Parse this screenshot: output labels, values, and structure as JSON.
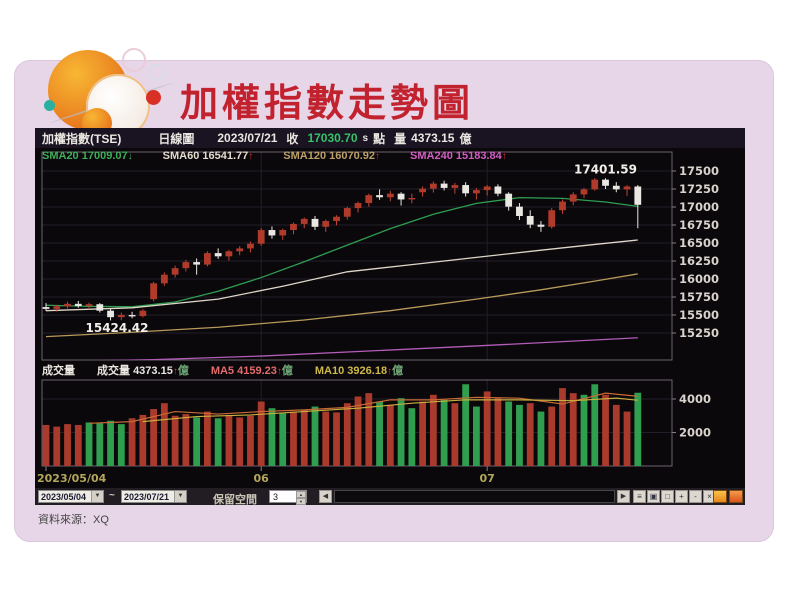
{
  "slide": {
    "title": "加權指數走勢圖",
    "source": "資料來源：XQ"
  },
  "chart": {
    "header": {
      "symbol": "加權指數(TSE)",
      "period": "日線圖",
      "date": "2023/07/21",
      "close_label": "收",
      "close_value": "17030.70",
      "session_flag": "s",
      "point_label": "點",
      "volume_label": "量",
      "volume_value": "4373.15",
      "unit": "億"
    },
    "sma_labels": [
      {
        "name": "SMA20",
        "value": "17009.07",
        "arrow": "↓",
        "color": "#3fae5a",
        "arrow_color": "#3fae5a"
      },
      {
        "name": "SMA60",
        "value": "16541.77",
        "arrow": "↑",
        "color": "#e4dccf",
        "arrow_color": "#e03030"
      },
      {
        "name": "SMA120",
        "value": "16070.92",
        "arrow": "↑",
        "color": "#bda068",
        "arrow_color": "#e03030"
      },
      {
        "name": "SMA240",
        "value": "15183.84",
        "arrow": "↑",
        "color": "#d35fc3",
        "arrow_color": "#e03030"
      }
    ],
    "volume_pane_label": "成交量",
    "volume_labels": [
      {
        "name": "成交量",
        "value": "4373.15",
        "arrow": "↑",
        "unit": "億",
        "color": "#eae6e0",
        "arrow_color": "#e03030"
      },
      {
        "name": "MA5",
        "value": "4159.23",
        "arrow": "↑",
        "unit": "億",
        "color": "#e36c6c",
        "arrow_color": "#e03030"
      },
      {
        "name": "MA10",
        "value": "3926.18",
        "arrow": "↑",
        "unit": "億",
        "color": "#cdb84a",
        "arrow_color": "#e03030"
      }
    ],
    "toolbar": {
      "date_from": "2023/05/04",
      "tilde": "~",
      "date_to": "2023/07/21",
      "dropdown_arrow": "▼",
      "reserve_label": "保留空間",
      "reserve_value": "3",
      "spinner_up": "▲",
      "spinner_down": "▼",
      "scroll_left": "◀",
      "scroll_right": "▶",
      "tool_glyphs": [
        "≡",
        "▣",
        "□",
        "+",
        "-",
        "×"
      ]
    }
  },
  "chart_data": {
    "type": "candlestick+volume",
    "title": "加權指數(TSE) 日線圖",
    "date_range": [
      "2023/05/04",
      "2023/07/21"
    ],
    "price_axis_ticks": [
      17500,
      17250,
      17000,
      16750,
      16500,
      16250,
      16000,
      15750,
      15500,
      15250
    ],
    "volume_axis_ticks": [
      4000,
      2000
    ],
    "x_ticks": [
      {
        "index": 0,
        "label": "2023/05/04",
        "align": "start"
      },
      {
        "index": 20,
        "label": "06",
        "align": "middle"
      },
      {
        "index": 41,
        "label": "07",
        "align": "middle"
      }
    ],
    "annotations": [
      {
        "index": 6.6,
        "price": 15264,
        "text": "15424.42",
        "anchor": "middle"
      },
      {
        "index": 52,
        "price": 17462,
        "text": "17401.59",
        "anchor": "middle"
      }
    ],
    "colors": {
      "up": "#b03b2b",
      "up_wick": "#c44436",
      "down": "#e9e7e2",
      "vol_r": "#a93a2c",
      "vol_g": "#2f9e4f",
      "grid": "#241e2b",
      "border": "#6e6270",
      "axis_text": "#d9d3cd",
      "x_text": "#b3a75a"
    },
    "candles": [
      [
        15610,
        15665,
        15555,
        15585,
        2450,
        "r"
      ],
      [
        15585,
        15640,
        15545,
        15620,
        2350,
        "r"
      ],
      [
        15620,
        15685,
        15590,
        15655,
        2500,
        "r"
      ],
      [
        15655,
        15695,
        15600,
        15625,
        2450,
        "r"
      ],
      [
        15625,
        15670,
        15580,
        15650,
        2600,
        "g"
      ],
      [
        15650,
        15665,
        15535,
        15560,
        2550,
        "g"
      ],
      [
        15560,
        15585,
        15424.42,
        15470,
        2700,
        "g"
      ],
      [
        15470,
        15535,
        15428,
        15500,
        2500,
        "g"
      ],
      [
        15500,
        15545,
        15455,
        15485,
        2850,
        "r"
      ],
      [
        15485,
        15580,
        15465,
        15560,
        3050,
        "r"
      ],
      [
        15720,
        15960,
        15690,
        15940,
        3400,
        "r"
      ],
      [
        15940,
        16090,
        15905,
        16060,
        3750,
        "r"
      ],
      [
        16060,
        16185,
        16020,
        16150,
        3000,
        "r"
      ],
      [
        16150,
        16265,
        16105,
        16235,
        3100,
        "r"
      ],
      [
        16235,
        16285,
        16060,
        16200,
        2900,
        "g"
      ],
      [
        16200,
        16385,
        16175,
        16360,
        3250,
        "r"
      ],
      [
        16360,
        16425,
        16280,
        16315,
        2850,
        "g"
      ],
      [
        16315,
        16405,
        16255,
        16385,
        3050,
        "r"
      ],
      [
        16385,
        16455,
        16330,
        16425,
        2900,
        "r"
      ],
      [
        16425,
        16520,
        16370,
        16490,
        3000,
        "r"
      ],
      [
        16490,
        16705,
        16460,
        16680,
        3850,
        "r"
      ],
      [
        16680,
        16730,
        16560,
        16605,
        3450,
        "g"
      ],
      [
        16605,
        16700,
        16545,
        16680,
        3150,
        "g"
      ],
      [
        16680,
        16785,
        16620,
        16765,
        3250,
        "r"
      ],
      [
        16765,
        16855,
        16705,
        16835,
        3350,
        "r"
      ],
      [
        16835,
        16875,
        16680,
        16725,
        3550,
        "g"
      ],
      [
        16725,
        16825,
        16655,
        16805,
        3250,
        "r"
      ],
      [
        16805,
        16885,
        16745,
        16865,
        3200,
        "r"
      ],
      [
        16865,
        17005,
        16825,
        16985,
        3750,
        "r"
      ],
      [
        16985,
        17075,
        16925,
        17055,
        4150,
        "r"
      ],
      [
        17055,
        17185,
        17005,
        17165,
        4350,
        "r"
      ],
      [
        17165,
        17245,
        17100,
        17135,
        3850,
        "g"
      ],
      [
        17135,
        17225,
        17080,
        17185,
        3650,
        "r"
      ],
      [
        17185,
        17205,
        17020,
        17105,
        4050,
        "g"
      ],
      [
        17105,
        17185,
        17050,
        17125,
        3450,
        "g"
      ],
      [
        17205,
        17285,
        17145,
        17255,
        3850,
        "r"
      ],
      [
        17255,
        17355,
        17200,
        17325,
        4250,
        "r"
      ],
      [
        17325,
        17365,
        17230,
        17265,
        3950,
        "g"
      ],
      [
        17265,
        17335,
        17185,
        17305,
        3750,
        "r"
      ],
      [
        17305,
        17345,
        17145,
        17190,
        4880,
        "g"
      ],
      [
        17190,
        17265,
        17105,
        17235,
        3550,
        "g"
      ],
      [
        17235,
        17305,
        17160,
        17285,
        4450,
        "r"
      ],
      [
        17285,
        17315,
        17150,
        17185,
        4050,
        "r"
      ],
      [
        17185,
        17205,
        16950,
        17005,
        3850,
        "g"
      ],
      [
        17005,
        17055,
        16820,
        16875,
        3650,
        "g"
      ],
      [
        16875,
        16955,
        16705,
        16755,
        3750,
        "r"
      ],
      [
        16755,
        16805,
        16655,
        16725,
        3250,
        "g"
      ],
      [
        16725,
        16985,
        16700,
        16955,
        3550,
        "r"
      ],
      [
        16955,
        17105,
        16905,
        17075,
        4650,
        "r"
      ],
      [
        17075,
        17205,
        17025,
        17175,
        4350,
        "r"
      ],
      [
        17175,
        17265,
        17125,
        17245,
        4250,
        "g"
      ],
      [
        17245,
        17401.59,
        17225,
        17380,
        4880,
        "g"
      ],
      [
        17380,
        17400,
        17250,
        17295,
        4250,
        "r"
      ],
      [
        17295,
        17345,
        17205,
        17245,
        3650,
        "r"
      ],
      [
        17245,
        17305,
        17155,
        17285,
        3250,
        "r"
      ],
      [
        17285,
        17305,
        16705,
        17030.7,
        4373.15,
        "g"
      ]
    ],
    "price_mas": [
      {
        "name": "SMA20",
        "color": "#2f9e52",
        "points": [
          [
            0,
            15635
          ],
          [
            4,
            15620
          ],
          [
            8,
            15615
          ],
          [
            12,
            15680
          ],
          [
            16,
            15830
          ],
          [
            20,
            16020
          ],
          [
            24,
            16240
          ],
          [
            28,
            16470
          ],
          [
            32,
            16700
          ],
          [
            36,
            16900
          ],
          [
            40,
            17050
          ],
          [
            44,
            17130
          ],
          [
            48,
            17120
          ],
          [
            52,
            17070
          ],
          [
            55,
            17009.07
          ]
        ]
      },
      {
        "name": "SMA60",
        "color": "#ded6c8",
        "points": [
          [
            0,
            15560
          ],
          [
            8,
            15600
          ],
          [
            16,
            15720
          ],
          [
            22,
            15900
          ],
          [
            28,
            16100
          ],
          [
            34,
            16200
          ],
          [
            40,
            16300
          ],
          [
            46,
            16400
          ],
          [
            51,
            16480
          ],
          [
            55,
            16541.77
          ]
        ]
      },
      {
        "name": "SMA120",
        "color": "#b89a5a",
        "points": [
          [
            0,
            15200
          ],
          [
            8,
            15260
          ],
          [
            16,
            15330
          ],
          [
            24,
            15430
          ],
          [
            32,
            15560
          ],
          [
            40,
            15720
          ],
          [
            46,
            15850
          ],
          [
            51,
            15970
          ],
          [
            55,
            16070.92
          ]
        ]
      },
      {
        "name": "SMA240",
        "color": "#b35cb8",
        "points": [
          [
            0,
            14850
          ],
          [
            10,
            14880
          ],
          [
            20,
            14930
          ],
          [
            30,
            15000
          ],
          [
            40,
            15070
          ],
          [
            48,
            15130
          ],
          [
            55,
            15183.84
          ]
        ]
      }
    ],
    "volume_mas": [
      {
        "name": "MA5",
        "color": "#c96a35",
        "points": [
          [
            4,
            2550
          ],
          [
            8,
            2650
          ],
          [
            12,
            3250
          ],
          [
            16,
            3100
          ],
          [
            20,
            3250
          ],
          [
            24,
            3350
          ],
          [
            28,
            3500
          ],
          [
            32,
            3950
          ],
          [
            36,
            3950
          ],
          [
            40,
            4100
          ],
          [
            44,
            4050
          ],
          [
            48,
            3700
          ],
          [
            52,
            4350
          ],
          [
            55,
            4159.23
          ]
        ]
      },
      {
        "name": "MA10",
        "color": "#c9ae3f",
        "points": [
          [
            9,
            2650
          ],
          [
            14,
            2950
          ],
          [
            19,
            3050
          ],
          [
            24,
            3250
          ],
          [
            29,
            3450
          ],
          [
            34,
            3750
          ],
          [
            39,
            3950
          ],
          [
            44,
            3950
          ],
          [
            49,
            3900
          ],
          [
            53,
            4050
          ],
          [
            55,
            3926.18
          ]
        ]
      }
    ]
  }
}
